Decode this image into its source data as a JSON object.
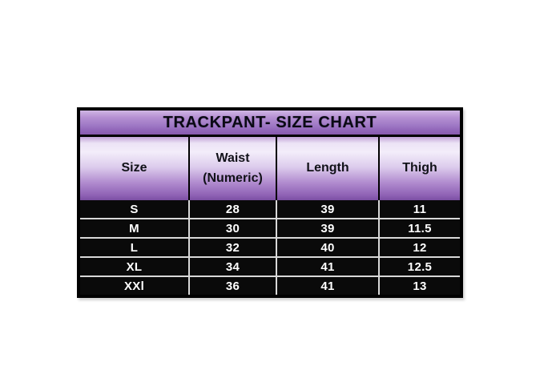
{
  "page": {
    "background_color": "#ffffff"
  },
  "table": {
    "title": "TRACKPANT- SIZE CHART",
    "columns": [
      "Size",
      "Waist (Numeric)",
      "Length",
      "Thigh"
    ],
    "rows": [
      {
        "size": "S",
        "waist": "28",
        "length": "39",
        "thigh": "11"
      },
      {
        "size": "M",
        "waist": "30",
        "length": "39",
        "thigh": "11.5"
      },
      {
        "size": "L",
        "waist": "32",
        "length": "40",
        "thigh": "12"
      },
      {
        "size": "XL",
        "waist": "34",
        "length": "41",
        "thigh": "12.5"
      },
      {
        "size": "XXl",
        "waist": "36",
        "length": "41",
        "thigh": "13"
      }
    ],
    "colors": {
      "title_gradient_top": "#cfb6e4",
      "title_gradient_bottom": "#8759ae",
      "header_gradient_highlight": "#f3edfa",
      "header_gradient_bottom": "#7b4ea3",
      "row_background": "#0a0a0a",
      "row_text": "#ffffff",
      "grid_line": "#d8d8d8",
      "outer_border": "#000000",
      "title_text": "#0a0a14",
      "header_text": "#111118"
    }
  }
}
